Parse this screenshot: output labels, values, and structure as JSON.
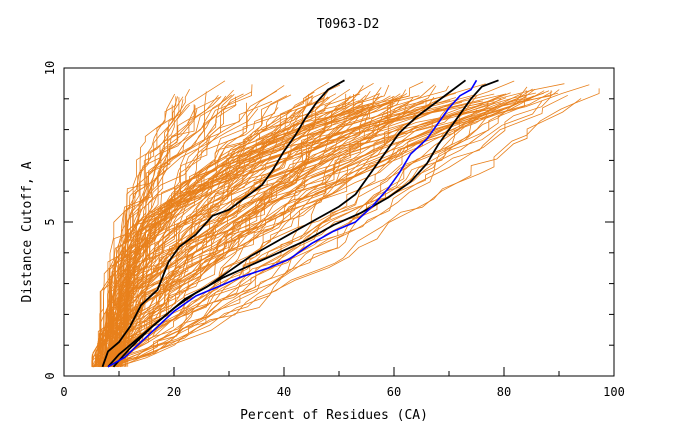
{
  "chart_data": {
    "type": "line",
    "title": "T0963-D2",
    "xlabel": "Percent of Residues (CA)",
    "ylabel": "Distance Cutoff, A",
    "xlim": [
      0,
      100
    ],
    "ylim": [
      0,
      10
    ],
    "x_ticks": [
      "0",
      "20",
      "40",
      "60",
      "80",
      "100"
    ],
    "y_ticks": [
      "0",
      "5",
      "10"
    ],
    "grid": false,
    "legend": "none",
    "colors": {
      "background_models": "#e8801c",
      "highlight": "#0000ff",
      "reference": "#000000",
      "axes": "#000000"
    },
    "series": [
      {
        "role": "reference",
        "color": "#000000",
        "points": [
          [
            7,
            0.3
          ],
          [
            8,
            0.8
          ],
          [
            10,
            1.1
          ],
          [
            12,
            1.6
          ],
          [
            14,
            2.3
          ],
          [
            17,
            2.8
          ],
          [
            19,
            3.7
          ],
          [
            21,
            4.2
          ],
          [
            24,
            4.6
          ],
          [
            27,
            5.2
          ],
          [
            30,
            5.4
          ],
          [
            33,
            5.8
          ],
          [
            36,
            6.2
          ],
          [
            38,
            6.7
          ],
          [
            40,
            7.3
          ],
          [
            42,
            7.8
          ],
          [
            44,
            8.4
          ],
          [
            46,
            8.9
          ],
          [
            48,
            9.3
          ],
          [
            51,
            9.6
          ]
        ]
      },
      {
        "role": "reference",
        "color": "#000000",
        "points": [
          [
            8,
            0.3
          ],
          [
            10,
            0.7
          ],
          [
            14,
            1.3
          ],
          [
            18,
            1.9
          ],
          [
            22,
            2.5
          ],
          [
            26,
            2.9
          ],
          [
            30,
            3.4
          ],
          [
            34,
            3.9
          ],
          [
            38,
            4.3
          ],
          [
            42,
            4.7
          ],
          [
            46,
            5.1
          ],
          [
            50,
            5.5
          ],
          [
            53,
            5.9
          ],
          [
            55,
            6.4
          ],
          [
            57,
            6.9
          ],
          [
            59,
            7.4
          ],
          [
            61,
            7.9
          ],
          [
            64,
            8.4
          ],
          [
            67,
            8.8
          ],
          [
            70,
            9.2
          ],
          [
            73,
            9.6
          ]
        ]
      },
      {
        "role": "reference",
        "color": "#000000",
        "points": [
          [
            9,
            0.3
          ],
          [
            12,
            0.9
          ],
          [
            16,
            1.6
          ],
          [
            20,
            2.2
          ],
          [
            24,
            2.7
          ],
          [
            29,
            3.2
          ],
          [
            34,
            3.6
          ],
          [
            39,
            4.0
          ],
          [
            44,
            4.4
          ],
          [
            49,
            4.9
          ],
          [
            54,
            5.3
          ],
          [
            59,
            5.8
          ],
          [
            63,
            6.3
          ],
          [
            66,
            6.9
          ],
          [
            68,
            7.5
          ],
          [
            70,
            8.0
          ],
          [
            72,
            8.5
          ],
          [
            74,
            9.0
          ],
          [
            76,
            9.4
          ],
          [
            79,
            9.6
          ]
        ]
      },
      {
        "role": "highlight",
        "color": "#0000ff",
        "points": [
          [
            8,
            0.3
          ],
          [
            11,
            0.6
          ],
          [
            14,
            1.1
          ],
          [
            17,
            1.6
          ],
          [
            20,
            2.1
          ],
          [
            24,
            2.6
          ],
          [
            28,
            2.9
          ],
          [
            32,
            3.2
          ],
          [
            37,
            3.5
          ],
          [
            41,
            3.8
          ],
          [
            45,
            4.3
          ],
          [
            49,
            4.7
          ],
          [
            53,
            5.0
          ],
          [
            56,
            5.5
          ],
          [
            59,
            6.1
          ],
          [
            61,
            6.6
          ],
          [
            63,
            7.2
          ],
          [
            66,
            7.7
          ],
          [
            68,
            8.2
          ],
          [
            70,
            8.7
          ],
          [
            72,
            9.1
          ],
          [
            74,
            9.3
          ],
          [
            75,
            9.6
          ]
        ]
      }
    ]
  }
}
